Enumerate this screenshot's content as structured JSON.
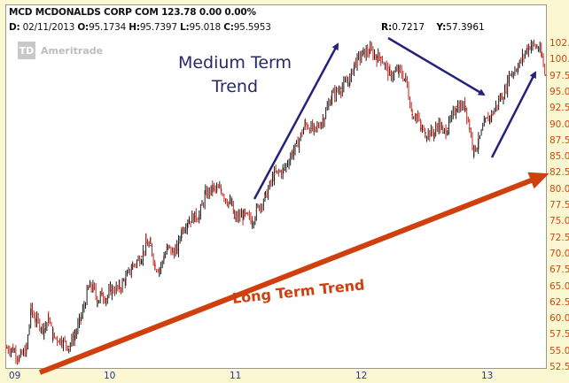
{
  "header": {
    "symbol_line": "MCD MCDONALDS CORP COM   123.78   0.00   0.00%",
    "date_label": "D:",
    "date": "02/11/2013",
    "open_label": "O:",
    "open": "95.1734",
    "high_label": "H:",
    "high": "95.7397",
    "low_label": "L:",
    "low": "95.018",
    "close_label": "C:",
    "close": "95.5953",
    "r_label": "R:",
    "r": "0.7217",
    "y_label": "Y:",
    "y": "57.3961"
  },
  "logo": {
    "mark": "TD",
    "text": "Ameritrade"
  },
  "annotations": {
    "medium_line1": "Medium Term",
    "medium_line2": "Trend",
    "long": "Long Term Trend",
    "medium_color": "#23237a",
    "long_color": "#d0400f"
  },
  "chart_data": {
    "type": "line",
    "title": "",
    "xlabel": "",
    "ylabel": "",
    "x_tick_labels": [
      "09",
      "10",
      "11",
      "12",
      "13"
    ],
    "y_tick_labels": [
      "102.5",
      "100.0",
      "97.5",
      "95.0",
      "92.5",
      "90.0",
      "87.5",
      "85.0",
      "82.5",
      "80.0",
      "77.5",
      "75.0",
      "72.5",
      "70.0",
      "67.5",
      "65.0",
      "62.5",
      "60.0",
      "57.5",
      "55.0",
      "52.5"
    ],
    "ylim": [
      52.5,
      102.5
    ],
    "grid": false,
    "series_color_up": "#1a1a1a",
    "series_color_down": "#c0241a",
    "series": [
      {
        "x": [
          "2009-03-26",
          "2009-04-13",
          "2009-05-01",
          "2009-05-22",
          "2009-06-04",
          "2009-06-17",
          "2009-07-12",
          "2009-07-25",
          "2009-08-07",
          "2009-09-02",
          "2009-09-22",
          "2009-10-10",
          "2009-10-28",
          "2009-11-18",
          "2009-12-01",
          "2009-12-14",
          "2009-12-27",
          "2010-01-08",
          "2010-01-21",
          "2010-02-16",
          "2010-03-06",
          "2010-03-26",
          "2010-04-21",
          "2010-05-04",
          "2010-05-17",
          "2010-05-30",
          "2010-06-12",
          "2010-06-25",
          "2010-07-07",
          "2010-07-20",
          "2010-08-02",
          "2010-08-15",
          "2010-09-02",
          "2010-09-22",
          "2010-10-05",
          "2010-10-23",
          "2010-11-13",
          "2010-11-25",
          "2010-12-08",
          "2010-12-21",
          "2011-01-08",
          "2011-01-15",
          "2011-02-11",
          "2011-03-08",
          "2011-03-20",
          "2011-04-15",
          "2011-05-11",
          "2011-06-06",
          "2011-07-02",
          "2011-07-14",
          "2011-08-09",
          "2011-09-04",
          "2011-09-29",
          "2011-10-25",
          "2011-11-20",
          "2011-12-16",
          "2011-12-29",
          "2012-01-24",
          "2012-02-13",
          "2012-03-03",
          "2012-03-15",
          "2012-04-10",
          "2012-05-06",
          "2012-05-26",
          "2012-06-14",
          "2012-06-26",
          "2012-07-09",
          "2012-07-22",
          "2012-08-17",
          "2012-08-30",
          "2012-09-11",
          "2012-09-24",
          "2012-10-20",
          "2012-11-15",
          "2012-11-27",
          "2012-12-10",
          "2012-12-23",
          "2013-01-13",
          "2013-01-31",
          "2013-02-26",
          "2013-03-10",
          "2013-03-23",
          "2013-04-18",
          "2013-05-14",
          "2013-05-26",
          "2013-06-16",
          "2013-06-26",
          "2013-07-06"
        ],
        "y": [
          55.6,
          55.4,
          54.0,
          55.4,
          61.5,
          59.9,
          58.5,
          60.1,
          57.4,
          56.7,
          55.8,
          57.7,
          60.4,
          64.9,
          64.9,
          62.9,
          64.0,
          63.2,
          64.5,
          64.9,
          66.3,
          68.3,
          69.7,
          71.8,
          71.4,
          68.3,
          67.7,
          69.7,
          71.1,
          70.4,
          70.8,
          73.8,
          75.2,
          75.9,
          76.1,
          79.3,
          80.2,
          80.0,
          80.0,
          78.6,
          77.6,
          75.6,
          76.1,
          75.2,
          76.8,
          79.0,
          82.4,
          83.0,
          85.8,
          86.8,
          90.2,
          89.1,
          90.9,
          94.6,
          95.7,
          97.0,
          99.5,
          101.1,
          101.5,
          100.5,
          100.5,
          97.7,
          98.4,
          97.0,
          91.6,
          91.6,
          89.5,
          88.8,
          88.8,
          90.2,
          88.8,
          89.5,
          92.9,
          92.9,
          89.5,
          86.1,
          87.5,
          90.5,
          91.6,
          94.3,
          95.0,
          97.7,
          99.1,
          101.8,
          102.5,
          101.8,
          100.5,
          97.7
        ]
      }
    ]
  }
}
